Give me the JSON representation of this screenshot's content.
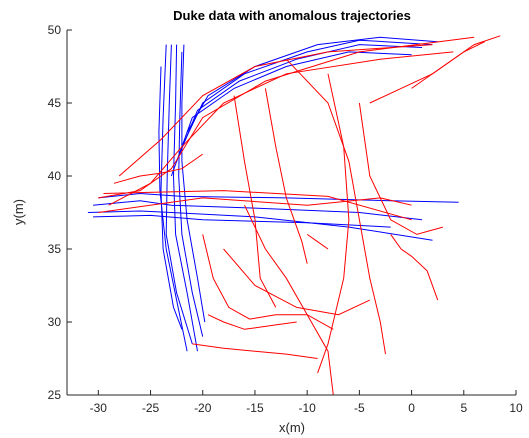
{
  "chart_data": {
    "type": "line",
    "title": "Duke data with anomalous trajectories",
    "xlabel": "x(m)",
    "ylabel": "y(m)",
    "xlim": [
      -33,
      10
    ],
    "ylim": [
      25,
      50
    ],
    "xticks": [
      -30,
      -25,
      -20,
      -15,
      -10,
      -5,
      0,
      5,
      10
    ],
    "yticks": [
      25,
      30,
      35,
      40,
      45,
      50
    ],
    "grid": false,
    "colors": {
      "normal": "#0000ff",
      "anomalous": "#ff0000",
      "axis": "#262626"
    },
    "series": [
      {
        "group": "normal",
        "trajectories": [
          [
            [
              -23.0,
              49.0
            ],
            [
              -23.2,
              45.0
            ],
            [
              -23.4,
              40.0
            ],
            [
              -23.5,
              36.0
            ],
            [
              -22.5,
              32.0
            ],
            [
              -21.0,
              28.5
            ]
          ],
          [
            [
              -22.5,
              49.0
            ],
            [
              -22.6,
              45.0
            ],
            [
              -22.8,
              40.0
            ],
            [
              -22.6,
              36.0
            ],
            [
              -21.5,
              32.0
            ],
            [
              -20.5,
              28.0
            ]
          ],
          [
            [
              -23.5,
              49.0
            ],
            [
              -23.8,
              44.0
            ],
            [
              -24.0,
              39.0
            ],
            [
              -23.8,
              35.0
            ],
            [
              -22.8,
              31.0
            ],
            [
              -22.0,
              29.5
            ]
          ],
          [
            [
              -22.0,
              48.5
            ],
            [
              -22.2,
              44.0
            ],
            [
              -22.3,
              40.0
            ],
            [
              -22.0,
              36.0
            ],
            [
              -21.0,
              32.0
            ],
            [
              -20.0,
              29.0
            ]
          ],
          [
            [
              -21.8,
              49.0
            ],
            [
              -22.0,
              45.0
            ],
            [
              -22.0,
              41.0
            ],
            [
              -21.5,
              37.0
            ],
            [
              -20.5,
              33.0
            ],
            [
              -19.8,
              30.0
            ]
          ],
          [
            [
              -24.0,
              47.5
            ],
            [
              -24.2,
              43.0
            ],
            [
              -24.1,
              39.0
            ],
            [
              -23.5,
              35.0
            ],
            [
              -22.5,
              31.5
            ],
            [
              -21.5,
              28.0
            ]
          ],
          [
            [
              -30.5,
              38.0
            ],
            [
              -26.0,
              38.3
            ],
            [
              -23.0,
              38.0
            ],
            [
              -15.0,
              37.8
            ],
            [
              -5.0,
              37.5
            ],
            [
              1.0,
              37.0
            ]
          ],
          [
            [
              -31.0,
              37.5
            ],
            [
              -26.0,
              37.6
            ],
            [
              -23.0,
              37.5
            ],
            [
              -15.0,
              37.2
            ],
            [
              -6.0,
              36.5
            ],
            [
              2.0,
              35.6
            ]
          ],
          [
            [
              -30.0,
              38.5
            ],
            [
              -26.0,
              38.8
            ],
            [
              -22.0,
              38.6
            ],
            [
              -12.0,
              38.5
            ],
            [
              -2.0,
              38.3
            ],
            [
              4.5,
              38.2
            ]
          ],
          [
            [
              -30.5,
              37.2
            ],
            [
              -25.0,
              37.3
            ],
            [
              -20.0,
              37.0
            ],
            [
              -10.0,
              36.8
            ],
            [
              -2.0,
              36.5
            ]
          ],
          [
            [
              -22.0,
              42.0
            ],
            [
              -20.0,
              45.0
            ],
            [
              -16.0,
              47.0
            ],
            [
              -10.0,
              48.5
            ],
            [
              -5.0,
              49.3
            ],
            [
              2.0,
              49.0
            ]
          ],
          [
            [
              -22.5,
              41.0
            ],
            [
              -20.5,
              44.5
            ],
            [
              -16.5,
              46.5
            ],
            [
              -11.0,
              48.0
            ],
            [
              -5.0,
              49.0
            ],
            [
              1.0,
              48.8
            ]
          ],
          [
            [
              -23.0,
              40.0
            ],
            [
              -21.0,
              44.0
            ],
            [
              -17.0,
              46.0
            ],
            [
              -12.0,
              47.5
            ],
            [
              -6.0,
              48.5
            ],
            [
              0.0,
              48.3
            ]
          ],
          [
            [
              -21.5,
              43.0
            ],
            [
              -19.5,
              45.5
            ],
            [
              -15.0,
              47.5
            ],
            [
              -9.0,
              49.0
            ],
            [
              -3.0,
              49.5
            ],
            [
              2.5,
              49.2
            ]
          ]
        ]
      },
      {
        "group": "anomalous",
        "trajectories": [
          [
            [
              -30.0,
              38.5
            ],
            [
              -26.0,
              39.0
            ],
            [
              -23.0,
              40.5
            ],
            [
              -20.0,
              44.0
            ],
            [
              -14.0,
              46.5
            ],
            [
              -5.0,
              48.5
            ],
            [
              6.0,
              49.5
            ]
          ],
          [
            [
              -29.0,
              38.0
            ],
            [
              -25.0,
              39.5
            ],
            [
              -22.0,
              42.0
            ],
            [
              -18.0,
              45.0
            ],
            [
              -12.0,
              47.0
            ],
            [
              -3.0,
              48.0
            ],
            [
              4.0,
              48.5
            ]
          ],
          [
            [
              -28.0,
              40.0
            ],
            [
              -24.0,
              42.5
            ],
            [
              -20.0,
              45.5
            ],
            [
              -15.0,
              47.5
            ],
            [
              -8.0,
              48.5
            ],
            [
              2.0,
              49.0
            ]
          ],
          [
            [
              -30.0,
              37.5
            ],
            [
              -20.0,
              38.5
            ],
            [
              -10.0,
              38.0
            ],
            [
              -3.0,
              38.5
            ],
            [
              0.0,
              38.0
            ]
          ],
          [
            [
              -29.5,
              38.8
            ],
            [
              -18.0,
              39.0
            ],
            [
              -8.0,
              38.6
            ],
            [
              0.0,
              37.0
            ]
          ],
          [
            [
              -12.0,
              48.0
            ],
            [
              -8.0,
              45.0
            ],
            [
              -6.0,
              41.0
            ],
            [
              -5.0,
              37.0
            ],
            [
              -4.0,
              33.0
            ],
            [
              -3.0,
              30.0
            ],
            [
              -2.5,
              27.8
            ]
          ],
          [
            [
              -8.0,
              47.0
            ],
            [
              -6.5,
              42.0
            ],
            [
              -6.0,
              37.0
            ],
            [
              -6.5,
              33.0
            ],
            [
              -8.0,
              28.5
            ],
            [
              -9.0,
              26.5
            ]
          ],
          [
            [
              -20.0,
              36.0
            ],
            [
              -19.0,
              33.0
            ],
            [
              -17.5,
              31.0
            ],
            [
              -15.5,
              30.2
            ],
            [
              -13.0,
              30.5
            ],
            [
              -10.0,
              30.5
            ],
            [
              -7.5,
              29.5
            ]
          ],
          [
            [
              -18.0,
              35.0
            ],
            [
              -15.0,
              32.5
            ],
            [
              -11.0,
              31.0
            ],
            [
              -7.0,
              30.5
            ],
            [
              -4.0,
              31.5
            ]
          ],
          [
            [
              -16.0,
              38.0
            ],
            [
              -14.0,
              35.0
            ],
            [
              -12.0,
              33.0
            ],
            [
              -10.0,
              30.5
            ],
            [
              -8.0,
              28.0
            ],
            [
              -7.5,
              25.0
            ]
          ],
          [
            [
              -2.0,
              36.0
            ],
            [
              -1.0,
              35.0
            ],
            [
              0.0,
              34.5
            ],
            [
              1.5,
              33.5
            ],
            [
              2.5,
              31.5
            ]
          ],
          [
            [
              -10.0,
              36.0
            ],
            [
              -9.0,
              35.5
            ],
            [
              -8.0,
              35.0
            ]
          ],
          [
            [
              -14.0,
              46.0
            ],
            [
              -13.0,
              42.0
            ],
            [
              -12.0,
              38.5
            ],
            [
              -10.5,
              35.5
            ],
            [
              -10.0,
              34.0
            ]
          ],
          [
            [
              -21.0,
              28.5
            ],
            [
              -18.0,
              28.2
            ],
            [
              -15.0,
              28.0
            ],
            [
              -12.0,
              27.8
            ],
            [
              -9.0,
              27.5
            ]
          ],
          [
            [
              -5.0,
              45.0
            ],
            [
              -4.0,
              40.0
            ],
            [
              -2.0,
              37.0
            ],
            [
              0.5,
              36.0
            ],
            [
              3.0,
              36.5
            ]
          ],
          [
            [
              0.0,
              46.0
            ],
            [
              3.0,
              47.5
            ],
            [
              6.0,
              49.0
            ],
            [
              8.5,
              49.6
            ]
          ],
          [
            [
              -4.0,
              45.0
            ],
            [
              -1.0,
              46.0
            ],
            [
              2.0,
              47.0
            ],
            [
              5.0,
              48.5
            ],
            [
              7.0,
              49.2
            ]
          ],
          [
            [
              -17.0,
              45.5
            ],
            [
              -16.0,
              41.0
            ],
            [
              -15.0,
              37.0
            ],
            [
              -14.5,
              33.0
            ],
            [
              -13.0,
              31.0
            ]
          ],
          [
            [
              -28.5,
              39.5
            ],
            [
              -26.0,
              40.0
            ],
            [
              -24.0,
              40.2
            ],
            [
              -22.0,
              40.5
            ],
            [
              -20.0,
              41.5
            ]
          ],
          [
            [
              -19.5,
              30.5
            ],
            [
              -18.0,
              30.0
            ],
            [
              -16.0,
              29.5
            ],
            [
              -13.0,
              29.8
            ],
            [
              -11.0,
              30.0
            ]
          ]
        ]
      }
    ]
  }
}
